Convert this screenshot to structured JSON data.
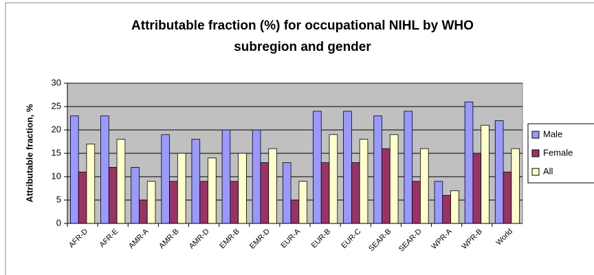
{
  "chart_data": {
    "type": "bar",
    "title": [
      "Attributable fraction (%) for occupational NIHL by WHO",
      "subregion and gender"
    ],
    "y_label": "Attributable fraction, %",
    "categories": [
      "AFR-D",
      "AFR-E",
      "AMR-A",
      "AMR-B",
      "AMR-D",
      "EMR-B",
      "EMR-D",
      "EUR-A",
      "EUR-B",
      "EUR-C",
      "SEAR-B",
      "SEAR-D",
      "WPR-A",
      "WPR-B",
      "World"
    ],
    "series": [
      {
        "name": "Male",
        "color": "#9999ff",
        "values": [
          23,
          23,
          12,
          19,
          18,
          20,
          20,
          13,
          24,
          24,
          23,
          24,
          9,
          26,
          22
        ]
      },
      {
        "name": "Female",
        "color": "#993366",
        "values": [
          11,
          12,
          5,
          9,
          9,
          9,
          13,
          5,
          13,
          13,
          16,
          9,
          6,
          15,
          11
        ]
      },
      {
        "name": "All",
        "color": "#ffffcc",
        "values": [
          17,
          18,
          9,
          15,
          14,
          15,
          16,
          9,
          19,
          18,
          19,
          16,
          7,
          21,
          16
        ]
      }
    ],
    "ylim": [
      0,
      30
    ],
    "yticks": [
      0,
      5,
      10,
      15,
      20,
      25,
      30
    ],
    "grid": true,
    "legend": "right"
  }
}
